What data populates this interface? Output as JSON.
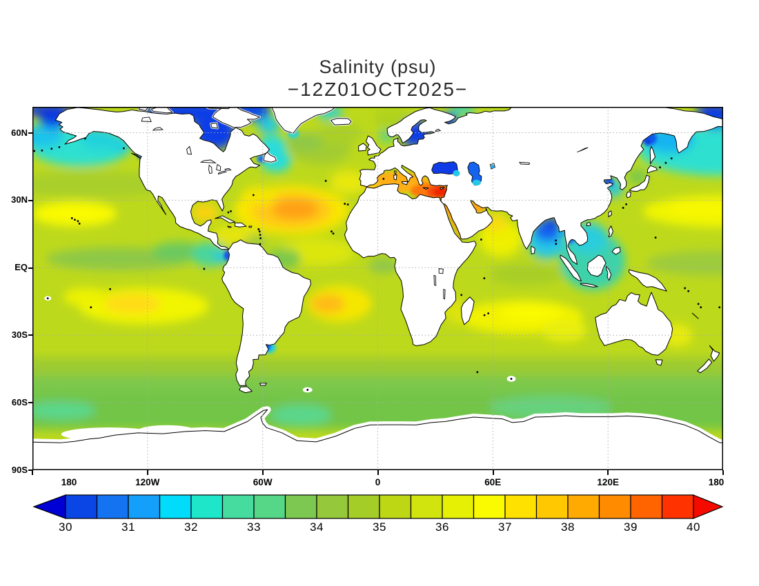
{
  "title": {
    "line1": "Salinity (psu)",
    "line2": "−12Z01OCT2025−"
  },
  "axes": {
    "y_ticks": [
      "60N",
      "30N",
      "EQ",
      "30S",
      "60S",
      "90S"
    ],
    "x_ticks": [
      "180",
      "120W",
      "60W",
      "0",
      "60E",
      "120E",
      "180"
    ]
  },
  "colorbar": {
    "labels": [
      "30",
      "31",
      "32",
      "33",
      "34",
      "35",
      "36",
      "37",
      "38",
      "39",
      "40"
    ],
    "min": 30,
    "max": 40,
    "step": 0.5,
    "segment_colors": [
      "#0000D5",
      "#0A46E6",
      "#1473F0",
      "#14A0FA",
      "#00DCFA",
      "#1EE6C8",
      "#46DCA0",
      "#55D787",
      "#7DC850",
      "#96C83C",
      "#A5CD28",
      "#BED714",
      "#D2E40E",
      "#E6F005",
      "#FAFA00",
      "#FFE100",
      "#FFC800",
      "#FFAA00",
      "#FF8C00",
      "#FF6400",
      "#FF3200",
      "#F50A00"
    ]
  }
}
